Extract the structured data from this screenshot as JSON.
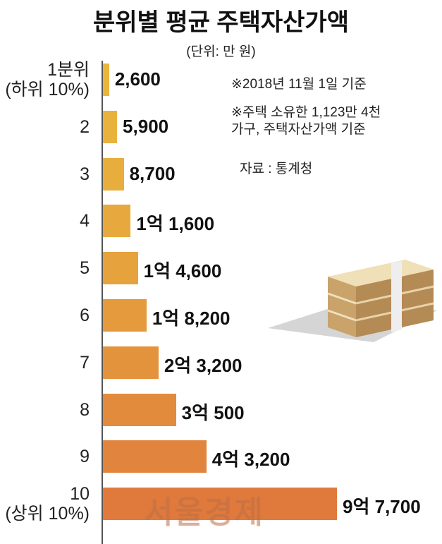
{
  "chart_data": {
    "type": "barh",
    "title": "분위별 평균 주택자산가액",
    "subtitle": "(단위: 만 원)",
    "notes": [
      "※2018년 11월 1일 기준",
      "※주택 소유한 1,123만 4천\n가구, 주택자산가액 기준",
      "자료 : 통계청"
    ],
    "watermark": "서울경제",
    "categories": [
      "1분위\n(하위 10%)",
      "2",
      "3",
      "4",
      "5",
      "6",
      "7",
      "8",
      "9",
      "10\n(상위 10%)"
    ],
    "values": [
      2600,
      5900,
      8700,
      11600,
      14600,
      18200,
      23200,
      30500,
      43200,
      97700
    ],
    "value_labels": [
      "2,600",
      "5,900",
      "8,700",
      "1억 1,600",
      "1억 4,600",
      "1억 8,200",
      "2억 3,200",
      "3억 500",
      "4억 3,200",
      "9억 7,700"
    ],
    "colors": [
      "#e9b63c",
      "#e8b23d",
      "#e8ae3d",
      "#e7a93d",
      "#e6a23d",
      "#e59b3d",
      "#e4933d",
      "#e28b3d",
      "#e1843d",
      "#df7a3c"
    ]
  }
}
